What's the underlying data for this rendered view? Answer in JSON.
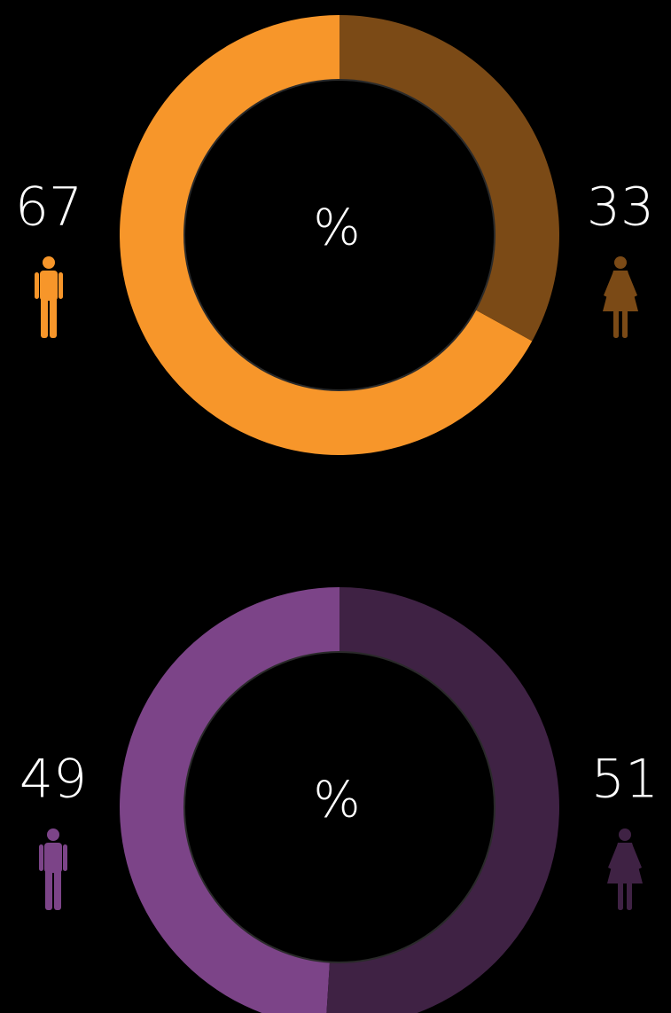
{
  "chart_data": [
    {
      "type": "pie",
      "center_label": "%",
      "values": [
        67,
        33
      ],
      "colors": [
        "#f7962a",
        "#7b4a16"
      ]
    },
    {
      "type": "pie",
      "center_label": "%",
      "values": [
        49,
        51
      ],
      "colors": [
        "#7c4488",
        "#3f2244"
      ]
    }
  ]
}
